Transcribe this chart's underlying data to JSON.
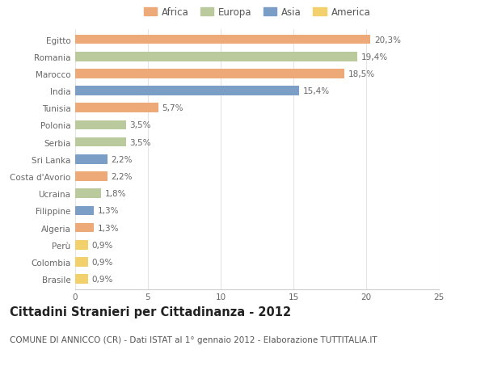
{
  "categories": [
    "Brasile",
    "Colombia",
    "Perù",
    "Algeria",
    "Filippine",
    "Ucraina",
    "Costa d'Avorio",
    "Sri Lanka",
    "Serbia",
    "Polonia",
    "Tunisia",
    "India",
    "Marocco",
    "Romania",
    "Egitto"
  ],
  "values": [
    0.9,
    0.9,
    0.9,
    1.3,
    1.3,
    1.8,
    2.2,
    2.2,
    3.5,
    3.5,
    5.7,
    15.4,
    18.5,
    19.4,
    20.3
  ],
  "continents": [
    "America",
    "America",
    "America",
    "Africa",
    "Asia",
    "Europa",
    "Africa",
    "Asia",
    "Europa",
    "Europa",
    "Africa",
    "Asia",
    "Africa",
    "Europa",
    "Africa"
  ],
  "colors": {
    "Africa": "#EDAA78",
    "Europa": "#BBCA9D",
    "Asia": "#7B9EC7",
    "America": "#F2D06B"
  },
  "legend_order": [
    "Africa",
    "Europa",
    "Asia",
    "America"
  ],
  "labels": [
    "0,9%",
    "0,9%",
    "0,9%",
    "1,3%",
    "1,3%",
    "1,8%",
    "2,2%",
    "2,2%",
    "3,5%",
    "3,5%",
    "5,7%",
    "15,4%",
    "18,5%",
    "19,4%",
    "20,3%"
  ],
  "xlim": [
    0,
    25
  ],
  "xticks": [
    0,
    5,
    10,
    15,
    20,
    25
  ],
  "title": "Cittadini Stranieri per Cittadinanza - 2012",
  "subtitle": "COMUNE DI ANNICCO (CR) - Dati ISTAT al 1° gennaio 2012 - Elaborazione TUTTITALIA.IT",
  "bg_color": "#FFFFFF",
  "bar_height": 0.55,
  "title_fontsize": 10.5,
  "subtitle_fontsize": 7.5,
  "label_fontsize": 7.5,
  "tick_fontsize": 7.5,
  "legend_fontsize": 8.5
}
